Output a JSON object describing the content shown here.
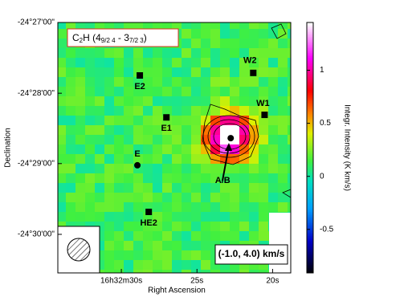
{
  "chart_data": {
    "type": "image",
    "title_parts": [
      "C",
      "2",
      "H (4",
      "9/2 4",
      " - 3",
      "7/2 3",
      ")"
    ],
    "annotation": "(-1.0, 4.0) km/s",
    "xlabel": "Right Ascension",
    "ylabel": "Declination",
    "colorbar_label": "Integr. Intensity (K km/s)",
    "xlim": [
      34.2,
      18.8
    ],
    "xticks": [
      {
        "value": 30,
        "label": "16h32m30s"
      },
      {
        "value": 25,
        "label": "25s"
      },
      {
        "value": 20,
        "label": "20s"
      }
    ],
    "ylim": [
      -24.5091,
      -24.45
    ],
    "yticks": [
      {
        "value": -24.45,
        "label": "-24°27'00\""
      },
      {
        "value": -24.4667,
        "label": "-24°28'00\""
      },
      {
        "value": -24.4833,
        "label": "-24°29'00\""
      },
      {
        "value": -24.5,
        "label": "-24°30'00\""
      }
    ],
    "clim": [
      -0.91,
      1.45
    ],
    "cticks": [
      -0.5,
      0,
      0.5,
      1
    ],
    "sources": [
      {
        "name": "E2",
        "ra": 28.78,
        "dec": -24.4625,
        "marker": "square"
      },
      {
        "name": "E1",
        "ra": 27.02,
        "dec": -24.4724,
        "marker": "square"
      },
      {
        "name": "E",
        "ra": 28.94,
        "dec": -24.4837,
        "marker": "circle"
      },
      {
        "name": "HE2",
        "ra": 28.19,
        "dec": -24.4947,
        "marker": "square"
      },
      {
        "name": "W2",
        "ra": 21.28,
        "dec": -24.4619,
        "marker": "square"
      },
      {
        "name": "W1",
        "ra": 20.53,
        "dec": -24.4718,
        "marker": "square"
      },
      {
        "name": "A/B",
        "ra": 22.77,
        "dec": -24.4773,
        "marker": "circle"
      }
    ]
  }
}
